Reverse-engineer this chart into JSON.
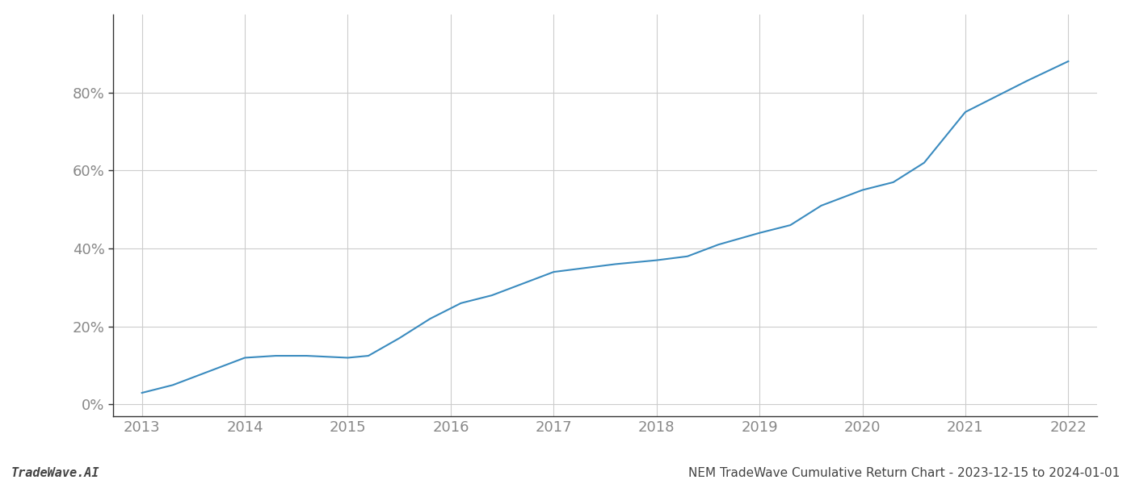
{
  "x_values": [
    2013.0,
    2013.3,
    2013.6,
    2014.0,
    2014.3,
    2014.6,
    2015.0,
    2015.2,
    2015.5,
    2015.8,
    2016.1,
    2016.4,
    2016.7,
    2017.0,
    2017.3,
    2017.6,
    2018.0,
    2018.3,
    2018.6,
    2019.0,
    2019.3,
    2019.6,
    2020.0,
    2020.3,
    2020.6,
    2021.0,
    2021.3,
    2021.6,
    2022.0
  ],
  "y_values": [
    3,
    5,
    8,
    12,
    12.5,
    12.5,
    12,
    12.5,
    17,
    22,
    26,
    28,
    31,
    34,
    35,
    36,
    37,
    38,
    41,
    44,
    46,
    51,
    55,
    57,
    62,
    75,
    79,
    83,
    88
  ],
  "line_color": "#3a8bbf",
  "line_width": 1.5,
  "background_color": "#ffffff",
  "grid_color": "#cccccc",
  "tick_label_color": "#888888",
  "bottom_left_text": "TradeWave.AI",
  "bottom_right_text": "NEM TradeWave Cumulative Return Chart - 2023-12-15 to 2024-01-01",
  "x_ticks": [
    2013,
    2014,
    2015,
    2016,
    2017,
    2018,
    2019,
    2020,
    2021,
    2022
  ],
  "y_ticks": [
    0,
    20,
    40,
    60,
    80
  ],
  "ylim": [
    -3,
    100
  ],
  "xlim": [
    2012.72,
    2022.28
  ]
}
